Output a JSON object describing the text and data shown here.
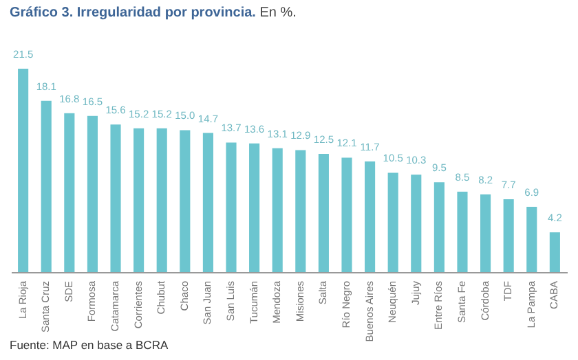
{
  "chart_data": {
    "type": "bar",
    "title": "Gráfico 3. Irregularidad por provincia.",
    "subtitle": "En %.",
    "categories": [
      "La Rioja",
      "Santa Cruz",
      "SDE",
      "Formosa",
      "Catamarca",
      "Corrientes",
      "Chubut",
      "Chaco",
      "San Juan",
      "San Luis",
      "Tucumán",
      "Mendoza",
      "Misiones",
      "Salta",
      "Río Negro",
      "Buenos Aires",
      "Neuquén",
      "Jujuy",
      "Entre Ríos",
      "Santa Fe",
      "Córdoba",
      "TDF",
      "La Pampa",
      "CABA"
    ],
    "values": [
      21.5,
      18.1,
      16.8,
      16.5,
      15.6,
      15.2,
      15.2,
      15.0,
      14.7,
      13.7,
      13.6,
      13.1,
      12.9,
      12.5,
      12.1,
      11.7,
      10.5,
      10.3,
      9.5,
      8.5,
      8.2,
      7.7,
      6.9,
      4.2
    ],
    "value_labels": [
      "21.5",
      "18.1",
      "16.8",
      "16.5",
      "15.6",
      "15.2",
      "15.2",
      "15.0",
      "14.7",
      "13.7",
      "13.6",
      "13.1",
      "12.9",
      "12.5",
      "12.1",
      "11.7",
      "10.5",
      "10.3",
      "9.5",
      "8.5",
      "8.2",
      "7.7",
      "6.9",
      "4.2"
    ],
    "color": "#6cc5cf",
    "annotations": [
      "Fuente: MAP en base a BCRA"
    ]
  }
}
